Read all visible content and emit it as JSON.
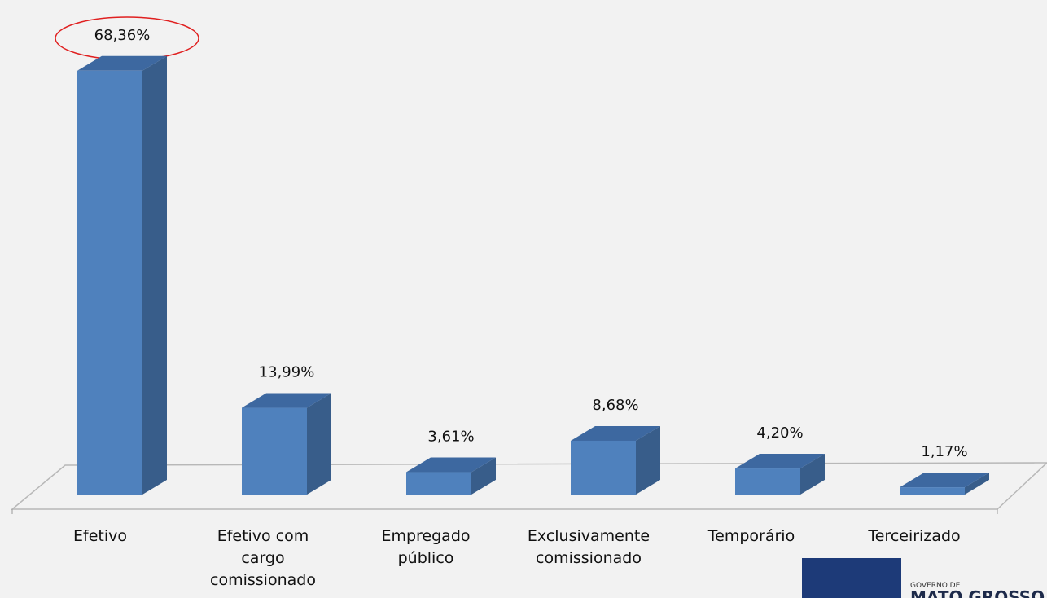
{
  "chart_data": {
    "type": "bar3d",
    "categories": [
      "Efetivo",
      "Efetivo com cargo comissionado",
      "Empregado público",
      "Exclusivamente comissionado",
      "Temporário",
      "Terceirizado"
    ],
    "values": [
      68.36,
      13.99,
      3.61,
      8.68,
      4.2,
      1.17
    ],
    "value_labels": [
      "68,36%",
      "13,99%",
      "3,61%",
      "8,68%",
      "4,20%",
      "1,17%"
    ],
    "color": "#4f81bd"
  },
  "logo": {
    "line1": "GOVERNO DE",
    "line2": "MATO GROSSO"
  }
}
